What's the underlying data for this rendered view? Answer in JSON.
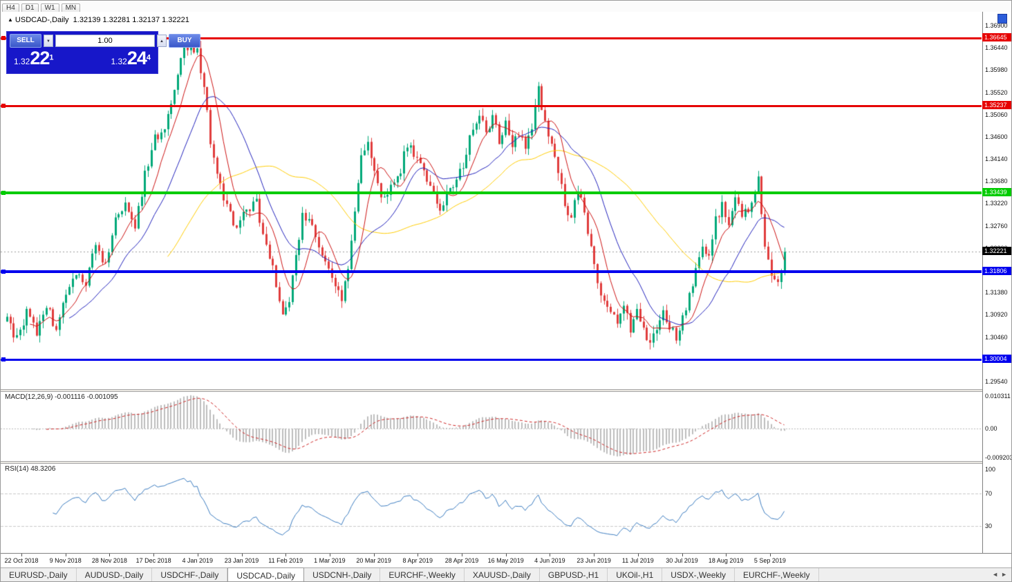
{
  "icons": {
    "title_arrow": "▲",
    "spinner_up": "▲",
    "spinner_down": "▼",
    "tab_prev": "◄",
    "tab_next": "►"
  },
  "timeframes": {
    "items": [
      "H4",
      "D1",
      "W1",
      "MN"
    ]
  },
  "chart": {
    "symbol": "USDCAD-,Daily",
    "ohlc": "1.32139 1.32281 1.32137 1.32221",
    "price_axis": [
      "1.36900",
      "1.36440",
      "1.35980",
      "1.35520",
      "1.35060",
      "1.34600",
      "1.34140",
      "1.33680",
      "1.33220",
      "1.32760",
      "1.32300",
      "1.31840",
      "1.31380",
      "1.30920",
      "1.30460",
      "1.30000",
      "1.29540"
    ],
    "levels": [
      {
        "price": 1.36645,
        "label": "1.36645",
        "color": "#e60000",
        "thickness": 3
      },
      {
        "price": 1.35237,
        "label": "1.35237",
        "color": "#e60000",
        "thickness": 3
      },
      {
        "price": 1.33439,
        "label": "1.33439",
        "color": "#00cc00",
        "thickness": 4
      },
      {
        "price": 1.31806,
        "label": "1.31806",
        "color": "#0000ee",
        "thickness": 4
      },
      {
        "price": 1.30004,
        "label": "1.30004",
        "color": "#0000ee",
        "thickness": 3
      }
    ],
    "current_price": {
      "price": 1.32221,
      "label": "1.32221",
      "color": "#000000"
    }
  },
  "trade_panel": {
    "sell_label": "SELL",
    "buy_label": "BUY",
    "volume": "1.00",
    "sell_price": {
      "small": "1.32",
      "big": "22",
      "sup": "1"
    },
    "buy_price": {
      "small": "1.32",
      "big": "24",
      "sup": "4"
    }
  },
  "macd": {
    "label": "MACD(12,26,9) -0.001116 -0.001095",
    "axis": [
      {
        "label": "0.010311",
        "value": 0.010311
      },
      {
        "label": "0.00",
        "value": 0
      },
      {
        "label": "-0.009203",
        "value": -0.009203
      }
    ]
  },
  "rsi": {
    "label": "RSI(14) 48.3206",
    "axis": [
      {
        "label": "100",
        "value": 100
      },
      {
        "label": "70",
        "value": 70
      },
      {
        "label": "30",
        "value": 30
      }
    ],
    "levels": [
      70,
      30
    ]
  },
  "tabs": {
    "items": [
      "EURUSD-,Daily",
      "AUDUSD-,Daily",
      "USDCHF-,Daily",
      "USDCAD-,Daily",
      "USDCNH-,Daily",
      "EURCHF-,Weekly",
      "XAUUSD-,Daily",
      "GBPUSD-,H1",
      "UKOil-,H1",
      "USDX-,Weekly",
      "EURCHF-,Weekly"
    ],
    "active_index": 3
  },
  "chart_data": {
    "type": "candlestick",
    "symbol": "USDCAD",
    "timeframe": "Daily",
    "bars": 238,
    "price_range": [
      1.2954,
      1.369
    ],
    "last_ohlc": {
      "open": 1.32139,
      "high": 1.32281,
      "low": 1.32137,
      "close": 1.32221
    },
    "levels": [
      1.36645,
      1.35237,
      1.33439,
      1.31806,
      1.30004
    ],
    "indicators": [
      {
        "name": "MACD",
        "params": [
          12,
          26,
          9
        ],
        "values": [
          -0.001116,
          -0.001095
        ]
      },
      {
        "name": "RSI",
        "params": [
          14
        ],
        "value": 48.3206
      },
      {
        "name": "MovingAverages",
        "periods": [
          8,
          20,
          50
        ],
        "colors": [
          "#cc1111",
          "#2020bb",
          "#ffcc00"
        ]
      }
    ],
    "colors": {
      "up": "#00a878",
      "down": "#e03c3c",
      "macd_hist": "#bdbdbd",
      "macd_signal": "#cc2222",
      "rsi_line": "#3a7bbf"
    },
    "x_dates": [
      "22 Oct 2018",
      "9 Nov 2018",
      "28 Nov 2018",
      "17 Dec 2018",
      "4 Jan 2019",
      "23 Jan 2019",
      "11 Feb 2019",
      "1 Mar 2019",
      "20 Mar 2019",
      "8 Apr 2019",
      "28 Apr 2019",
      "16 May 2019",
      "4 Jun 2019",
      "23 Jun 2019",
      "11 Jul 2019",
      "30 Jul 2019",
      "18 Aug 2019",
      "5 Sep 2019"
    ],
    "close_anchors": [
      [
        0,
        1.308
      ],
      [
        3,
        1.304
      ],
      [
        6,
        1.3095
      ],
      [
        9,
        1.306
      ],
      [
        12,
        1.311
      ],
      [
        15,
        1.3062
      ],
      [
        18,
        1.313
      ],
      [
        21,
        1.3185
      ],
      [
        24,
        1.3155
      ],
      [
        27,
        1.3235
      ],
      [
        30,
        1.3195
      ],
      [
        33,
        1.3285
      ],
      [
        36,
        1.3325
      ],
      [
        39,
        1.3275
      ],
      [
        42,
        1.338
      ],
      [
        45,
        1.3455
      ],
      [
        48,
        1.3485
      ],
      [
        51,
        1.3565
      ],
      [
        54,
        1.3645
      ],
      [
        56,
        1.3655
      ],
      [
        58,
        1.3635
      ],
      [
        60,
        1.3565
      ],
      [
        62,
        1.3445
      ],
      [
        64,
        1.3385
      ],
      [
        66,
        1.3335
      ],
      [
        68,
        1.3295
      ],
      [
        70,
        1.3265
      ],
      [
        72,
        1.3295
      ],
      [
        74,
        1.3315
      ],
      [
        76,
        1.3325
      ],
      [
        78,
        1.3255
      ],
      [
        80,
        1.3215
      ],
      [
        82,
        1.3155
      ],
      [
        84,
        1.3095
      ],
      [
        86,
        1.3125
      ],
      [
        88,
        1.3205
      ],
      [
        90,
        1.33
      ],
      [
        92,
        1.329
      ],
      [
        94,
        1.3245
      ],
      [
        96,
        1.3215
      ],
      [
        98,
        1.3195
      ],
      [
        100,
        1.3155
      ],
      [
        102,
        1.3125
      ],
      [
        104,
        1.3195
      ],
      [
        106,
        1.3305
      ],
      [
        108,
        1.3425
      ],
      [
        110,
        1.344
      ],
      [
        112,
        1.3385
      ],
      [
        114,
        1.3345
      ],
      [
        116,
        1.3335
      ],
      [
        118,
        1.3365
      ],
      [
        120,
        1.3395
      ],
      [
        122,
        1.3445
      ],
      [
        124,
        1.3425
      ],
      [
        126,
        1.3395
      ],
      [
        128,
        1.3365
      ],
      [
        130,
        1.3345
      ],
      [
        132,
        1.3315
      ],
      [
        134,
        1.3335
      ],
      [
        136,
        1.3355
      ],
      [
        138,
        1.3385
      ],
      [
        140,
        1.3425
      ],
      [
        142,
        1.3485
      ],
      [
        144,
        1.3505
      ],
      [
        146,
        1.3475
      ],
      [
        148,
        1.3495
      ],
      [
        150,
        1.3455
      ],
      [
        152,
        1.3485
      ],
      [
        154,
        1.3445
      ],
      [
        156,
        1.3465
      ],
      [
        158,
        1.3445
      ],
      [
        160,
        1.3485
      ],
      [
        162,
        1.3555
      ],
      [
        164,
        1.3495
      ],
      [
        166,
        1.3445
      ],
      [
        168,
        1.3395
      ],
      [
        170,
        1.3315
      ],
      [
        172,
        1.3285
      ],
      [
        174,
        1.3355
      ],
      [
        176,
        1.3295
      ],
      [
        178,
        1.3225
      ],
      [
        180,
        1.3155
      ],
      [
        182,
        1.3125
      ],
      [
        184,
        1.3095
      ],
      [
        186,
        1.3075
      ],
      [
        188,
        1.3105
      ],
      [
        190,
        1.3065
      ],
      [
        192,
        1.3095
      ],
      [
        194,
        1.3055
      ],
      [
        196,
        1.3025
      ],
      [
        198,
        1.3065
      ],
      [
        200,
        1.3105
      ],
      [
        202,
        1.3065
      ],
      [
        204,
        1.3045
      ],
      [
        206,
        1.3085
      ],
      [
        208,
        1.3135
      ],
      [
        210,
        1.3185
      ],
      [
        212,
        1.3235
      ],
      [
        214,
        1.3215
      ],
      [
        216,
        1.3285
      ],
      [
        218,
        1.3315
      ],
      [
        220,
        1.3275
      ],
      [
        222,
        1.3325
      ],
      [
        224,
        1.3305
      ],
      [
        226,
        1.3315
      ],
      [
        228,
        1.3345
      ],
      [
        229,
        1.3378
      ],
      [
        230,
        1.33
      ],
      [
        231,
        1.3235
      ],
      [
        233,
        1.3165
      ],
      [
        235,
        1.315
      ],
      [
        237,
        1.32221
      ]
    ]
  }
}
